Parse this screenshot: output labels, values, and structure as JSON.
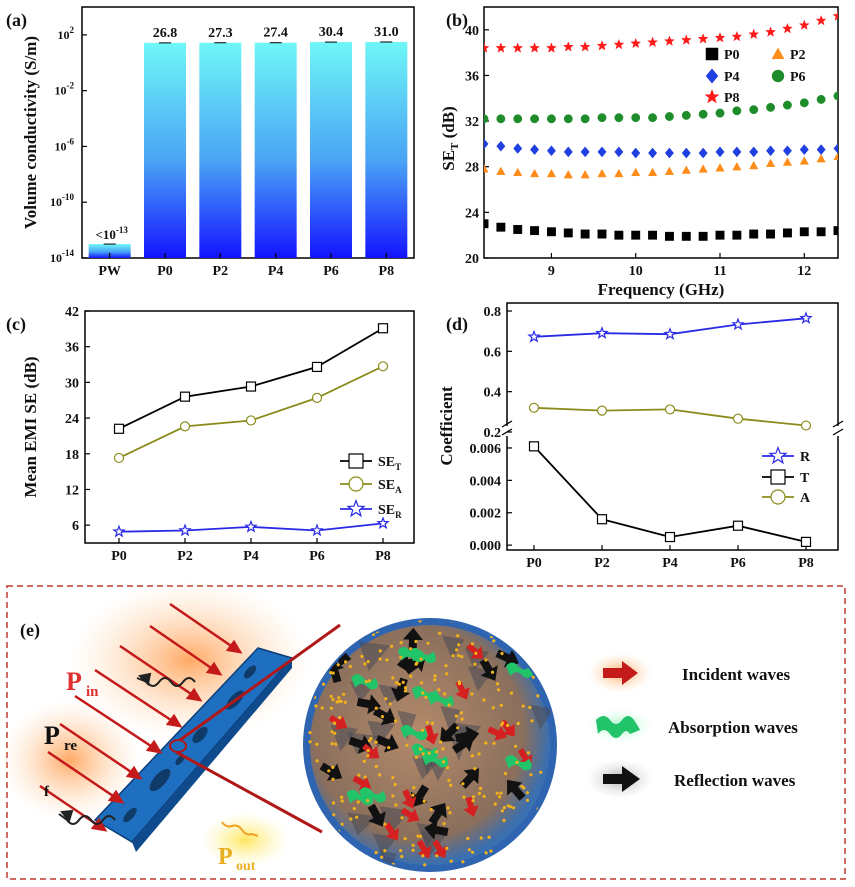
{
  "chart_data": [
    {
      "panel": "(a)",
      "type": "bar",
      "ylabel": "Volume conductivity (S/m)",
      "yscale": "log",
      "ytick_base": "10",
      "ytick_exps": [
        "-14",
        "-10",
        "-6",
        "-2",
        "2"
      ],
      "categories": [
        "PW",
        "P0",
        "P2",
        "P4",
        "P6",
        "P8"
      ],
      "values": [
        1e-13,
        26.8,
        27.3,
        27.4,
        30.4,
        31.0
      ],
      "data_labels": [
        "<10",
        "26.8",
        "27.3",
        "27.4",
        "30.4",
        "31.0"
      ],
      "pw_label_exp": "-13",
      "ylim_log": [
        -14,
        4
      ]
    },
    {
      "panel": "(b)",
      "type": "scatter",
      "xlabel": "Frequency (GHz)",
      "ylabel_main": "SE",
      "ylabel_sub": "T",
      "ylabel_unit": " (dB)",
      "xlim": [
        8.2,
        12.4
      ],
      "ylim": [
        20,
        42
      ],
      "xticks": [
        "9",
        "10",
        "11",
        "12"
      ],
      "yticks": [
        "20",
        "24",
        "28",
        "32",
        "36",
        "40"
      ],
      "x": [
        8.2,
        8.4,
        8.6,
        8.8,
        9.0,
        9.2,
        9.4,
        9.6,
        9.8,
        10.0,
        10.2,
        10.4,
        10.6,
        10.8,
        11.0,
        11.2,
        11.4,
        11.6,
        11.8,
        12.0,
        12.2,
        12.4
      ],
      "series": [
        {
          "name": "P0",
          "marker": "square",
          "color": "#000000",
          "values": [
            23.0,
            22.7,
            22.5,
            22.4,
            22.3,
            22.2,
            22.1,
            22.1,
            22.0,
            22.0,
            22.0,
            21.9,
            21.9,
            21.9,
            22.0,
            22.0,
            22.1,
            22.1,
            22.2,
            22.3,
            22.3,
            22.4
          ]
        },
        {
          "name": "P2",
          "marker": "triangle",
          "color": "#ff8c1a",
          "values": [
            27.8,
            27.6,
            27.5,
            27.4,
            27.4,
            27.3,
            27.3,
            27.4,
            27.4,
            27.5,
            27.5,
            27.6,
            27.7,
            27.8,
            27.9,
            28.0,
            28.1,
            28.3,
            28.4,
            28.5,
            28.7,
            28.9
          ]
        },
        {
          "name": "P4",
          "marker": "diamond",
          "color": "#1f3fe0",
          "values": [
            30.0,
            29.8,
            29.6,
            29.5,
            29.4,
            29.3,
            29.3,
            29.3,
            29.3,
            29.2,
            29.2,
            29.2,
            29.2,
            29.2,
            29.3,
            29.3,
            29.3,
            29.4,
            29.4,
            29.5,
            29.5,
            29.6
          ]
        },
        {
          "name": "P6",
          "marker": "circle",
          "color": "#1e8c2a",
          "values": [
            32.2,
            32.2,
            32.2,
            32.2,
            32.2,
            32.2,
            32.2,
            32.3,
            32.3,
            32.3,
            32.3,
            32.4,
            32.5,
            32.6,
            32.7,
            32.9,
            33.0,
            33.2,
            33.4,
            33.6,
            33.9,
            34.2
          ]
        },
        {
          "name": "P8",
          "marker": "star",
          "color": "#ff1a1a",
          "values": [
            38.4,
            38.4,
            38.4,
            38.4,
            38.4,
            38.5,
            38.5,
            38.6,
            38.7,
            38.8,
            38.9,
            39.0,
            39.1,
            39.2,
            39.3,
            39.4,
            39.6,
            39.8,
            40.1,
            40.4,
            40.8,
            41.2
          ]
        }
      ]
    },
    {
      "panel": "(c)",
      "type": "line",
      "ylabel": "Mean EMI SE (dB)",
      "categories": [
        "P0",
        "P2",
        "P4",
        "P6",
        "P8"
      ],
      "ylim": [
        3,
        42
      ],
      "yticks": [
        "6",
        "12",
        "18",
        "24",
        "30",
        "36",
        "42"
      ],
      "series": [
        {
          "name": "SE",
          "sub": "T",
          "marker": "square",
          "color": "#000000",
          "values": [
            22.2,
            27.6,
            29.3,
            32.6,
            39.1
          ]
        },
        {
          "name": "SE",
          "sub": "A",
          "marker": "circle",
          "color": "#8b8b1c",
          "values": [
            17.3,
            22.6,
            23.6,
            27.4,
            32.7
          ]
        },
        {
          "name": "SE",
          "sub": "R",
          "marker": "star",
          "color": "#2a2ae6",
          "values": [
            4.9,
            5.1,
            5.7,
            5.1,
            6.3
          ]
        }
      ]
    },
    {
      "panel": "(d)",
      "type": "line",
      "ylabel": "Coefficient",
      "categories": [
        "P0",
        "P2",
        "P4",
        "P6",
        "P8"
      ],
      "broken_axis": true,
      "upper_ylim": [
        0.2,
        0.8
      ],
      "upper_yticks": [
        "0.2",
        "0.4",
        "0.6",
        "0.8"
      ],
      "lower_ylim": [
        -0.0003,
        0.0068
      ],
      "lower_yticks": [
        "0.000",
        "0.002",
        "0.004",
        "0.006"
      ],
      "series": [
        {
          "name": "R",
          "marker": "star",
          "color": "#2a2ae6",
          "axis": "upper",
          "values": [
            0.672,
            0.69,
            0.685,
            0.733,
            0.764
          ]
        },
        {
          "name": "T",
          "marker": "square",
          "color": "#000000",
          "axis": "lower",
          "values": [
            0.0061,
            0.0016,
            0.0005,
            0.0012,
            0.0002
          ]
        },
        {
          "name": "A",
          "marker": "circle",
          "color": "#8b8b1c",
          "axis": "upper",
          "values": [
            0.32,
            0.306,
            0.312,
            0.266,
            0.232
          ]
        }
      ]
    }
  ],
  "panel_e": {
    "label": "(e)",
    "p_in": "P",
    "p_in_sub": "in",
    "p_re": "P",
    "p_re_sub": "re",
    "p_re_tail": "f",
    "p_out": "P",
    "p_out_sub": "out",
    "legend": [
      "Incident waves",
      "Absorption waves",
      "Reflection waves"
    ],
    "colors": {
      "incident": "#c41a1a",
      "absorption": "#22c46a",
      "reflection": "#111111",
      "sheet": "#1f6fc0",
      "frame": "#c0392b"
    }
  }
}
